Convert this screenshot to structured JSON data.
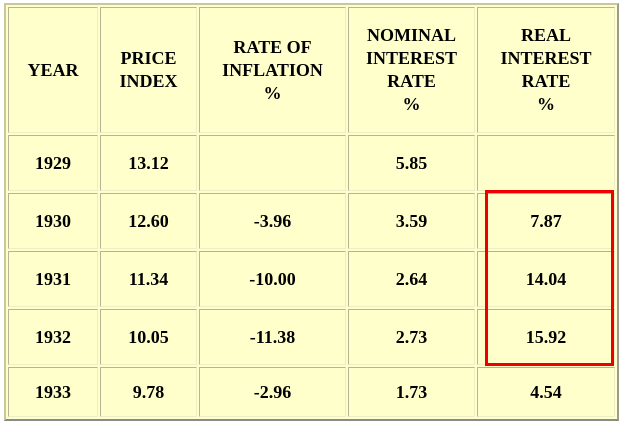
{
  "chart_data": {
    "type": "table",
    "columns": [
      "YEAR",
      "PRICE INDEX",
      "RATE OF INFLATION %",
      "NOMINAL INTEREST RATE %",
      "REAL INTEREST RATE %"
    ],
    "rows": [
      [
        "1929",
        "13.12",
        "",
        "5.85",
        ""
      ],
      [
        "1930",
        "12.60",
        "-3.96",
        "3.59",
        "7.87"
      ],
      [
        "1931",
        "11.34",
        "-10.00",
        "2.64",
        "14.04"
      ],
      [
        "1932",
        "10.05",
        "-11.38",
        "2.73",
        "15.92"
      ],
      [
        "1933",
        "9.78",
        "-2.96",
        "1.73",
        "4.54"
      ]
    ],
    "highlight": {
      "description": "Red rectangle drawn around the REAL INTEREST RATE % values for 1930, 1931 and 1932",
      "column": "REAL INTEREST RATE %",
      "rows": [
        "1930",
        "1931",
        "1932"
      ],
      "values": [
        "7.87",
        "14.04",
        "15.92"
      ],
      "color": "#ee0000"
    }
  },
  "table": {
    "header_labels": [
      "YEAR",
      "PRICE\nINDEX",
      "RATE OF\nINFLATION\n%",
      "NOMINAL\nINTEREST\nRATE\n%",
      "REAL\nINTEREST\nRATE\n%"
    ]
  },
  "colors": {
    "cell_background": "#ffffcc",
    "page_background": "#ffffff",
    "text": "#000000",
    "border_light": "#c8c89b",
    "border_dark": "#8b8b85",
    "cell_border": "#b5b593",
    "highlight": "#ee0000"
  }
}
